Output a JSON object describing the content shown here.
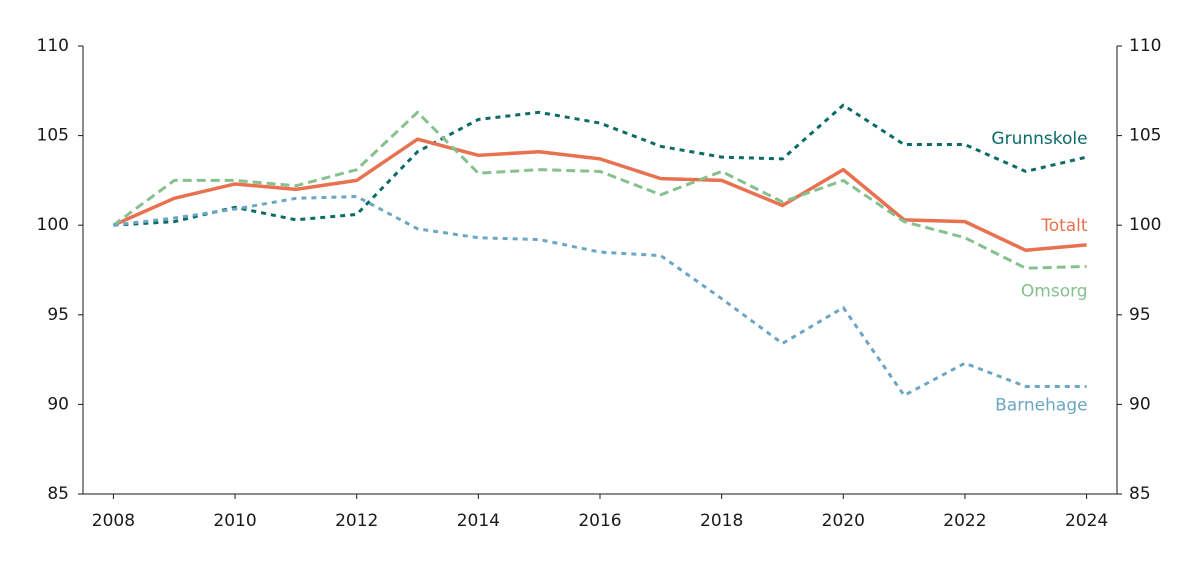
{
  "chart_data": {
    "type": "line",
    "x": [
      2008,
      2009,
      2010,
      2011,
      2012,
      2013,
      2014,
      2015,
      2016,
      2017,
      2018,
      2019,
      2020,
      2021,
      2022,
      2023,
      2024
    ],
    "xlim": [
      2007.5,
      2024.5
    ],
    "xticks": [
      2008,
      2010,
      2012,
      2014,
      2016,
      2018,
      2020,
      2022,
      2024
    ],
    "ylim": [
      85,
      110
    ],
    "yticks": [
      85,
      90,
      95,
      100,
      105,
      110
    ],
    "y2lim": [
      85,
      110
    ],
    "y2ticks": [
      85,
      90,
      95,
      100,
      105,
      110
    ],
    "series": [
      {
        "name": "Grunnskole",
        "color": "#0b6b66",
        "line_style": "dotted",
        "values": [
          100,
          100.2,
          101,
          100.3,
          100.6,
          104.1,
          105.9,
          106.3,
          105.7,
          104.4,
          103.8,
          103.7,
          106.7,
          104.5,
          104.5,
          103.0,
          103.8
        ]
      },
      {
        "name": "Totalt",
        "color": "#e8714f",
        "line_style": "solid",
        "values": [
          100,
          101.5,
          102.3,
          102.0,
          102.5,
          104.8,
          103.9,
          104.1,
          103.7,
          102.6,
          102.5,
          101.1,
          103.1,
          100.3,
          100.2,
          98.6,
          98.9
        ]
      },
      {
        "name": "Omsorg",
        "color": "#86c08f",
        "line_style": "dashed",
        "values": [
          100,
          102.5,
          102.5,
          102.2,
          103.1,
          106.3,
          102.9,
          103.1,
          103.0,
          101.7,
          103.0,
          101.3,
          102.5,
          100.2,
          99.3,
          97.6,
          97.7
        ]
      },
      {
        "name": "Barnehage",
        "color": "#6ba7c4",
        "line_style": "dotted",
        "values": [
          100,
          100.4,
          100.9,
          101.5,
          101.6,
          99.8,
          99.3,
          99.2,
          98.5,
          98.3,
          95.9,
          93.4,
          95.4,
          90.5,
          92.3,
          91.0,
          91.0
        ]
      }
    ]
  }
}
